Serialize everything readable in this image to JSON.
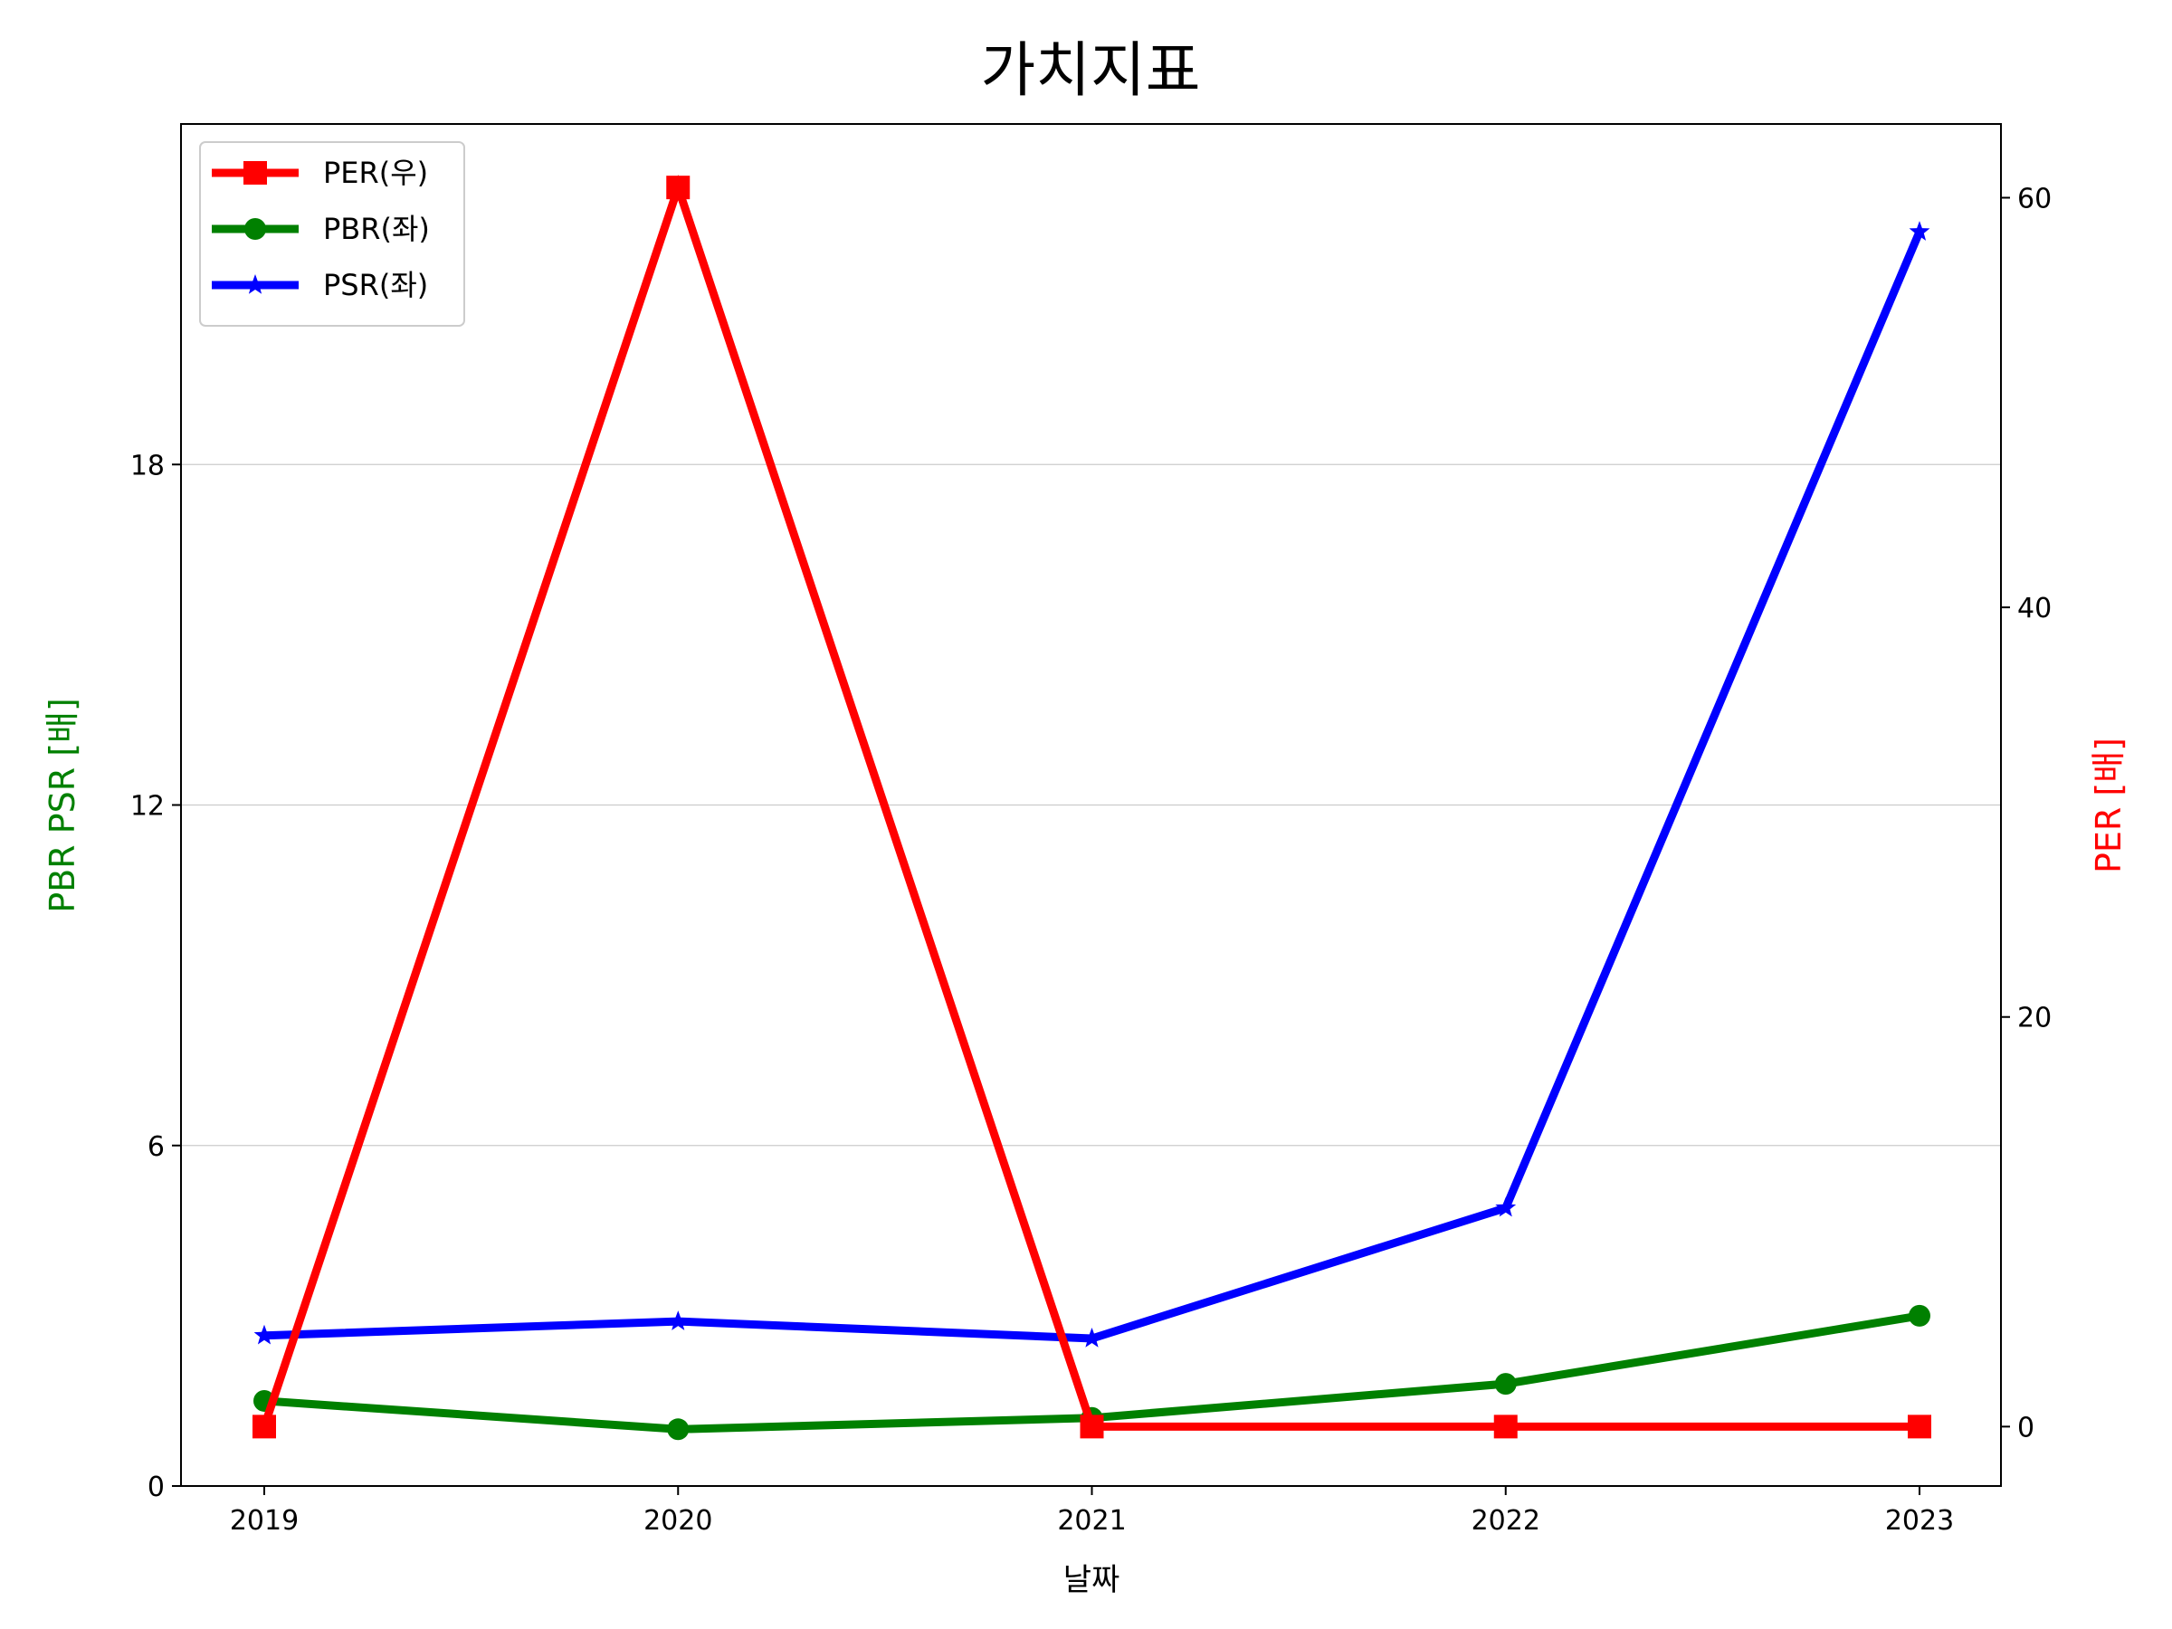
{
  "chart_data": {
    "type": "line",
    "title": "가치지표",
    "xlabel": "날짜",
    "ylabel_left": "PBR PSR [배]",
    "ylabel_right": "PER [배]",
    "categories": [
      "2019",
      "2020",
      "2021",
      "2022",
      "2023"
    ],
    "y_left_ticks": [
      "0",
      "6",
      "12",
      "18"
    ],
    "y_right_ticks": [
      "0",
      "20",
      "40",
      "60"
    ],
    "ylim_left": [
      0,
      24
    ],
    "ylim_right": [
      -2.9,
      63.6
    ],
    "grid": "horizontal (left axis)",
    "legend_position": "top-left",
    "colors": {
      "per": "#ff0000",
      "pbr": "#008000",
      "psr": "#0000ff",
      "ylabel_left": "#008000",
      "ylabel_right": "#ff0000"
    },
    "series": [
      {
        "name": "PER(우)",
        "axis": "right",
        "marker": "square",
        "color": "#ff0000",
        "values": [
          0,
          60.5,
          0,
          0,
          0
        ]
      },
      {
        "name": "PBR(좌)",
        "axis": "left",
        "marker": "circle",
        "color": "#008000",
        "values": [
          1.5,
          1.0,
          1.2,
          1.8,
          3.0
        ]
      },
      {
        "name": "PSR(좌)",
        "axis": "left",
        "marker": "star",
        "color": "#0000ff",
        "values": [
          2.65,
          2.9,
          2.6,
          4.9,
          22.1
        ]
      }
    ]
  }
}
